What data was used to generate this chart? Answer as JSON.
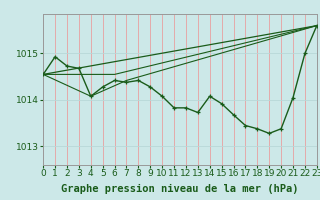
{
  "title": "Graphe pression niveau de la mer (hPa)",
  "background_color": "#cce8e8",
  "line_color": "#1a5c1a",
  "grid_color_v": "#e8a0a0",
  "grid_color_h": "#b8d8d8",
  "x_min": 0,
  "x_max": 23,
  "y_min": 1012.6,
  "y_max": 1015.85,
  "y_ticks": [
    1013,
    1014,
    1015
  ],
  "x_ticks": [
    0,
    1,
    2,
    3,
    4,
    5,
    6,
    7,
    8,
    9,
    10,
    11,
    12,
    13,
    14,
    15,
    16,
    17,
    18,
    19,
    20,
    21,
    22,
    23
  ],
  "main_series": [
    [
      0,
      1014.55
    ],
    [
      1,
      1014.93
    ],
    [
      2,
      1014.73
    ],
    [
      3,
      1014.68
    ],
    [
      4,
      1014.08
    ],
    [
      5,
      1014.28
    ],
    [
      6,
      1014.42
    ],
    [
      7,
      1014.38
    ],
    [
      8,
      1014.42
    ],
    [
      9,
      1014.28
    ],
    [
      10,
      1014.08
    ],
    [
      11,
      1013.83
    ],
    [
      12,
      1013.83
    ],
    [
      13,
      1013.73
    ],
    [
      14,
      1014.08
    ],
    [
      15,
      1013.92
    ],
    [
      16,
      1013.68
    ],
    [
      17,
      1013.45
    ],
    [
      18,
      1013.38
    ],
    [
      19,
      1013.28
    ],
    [
      20,
      1013.38
    ],
    [
      21,
      1014.05
    ],
    [
      22,
      1015.0
    ],
    [
      23,
      1015.6
    ]
  ],
  "trend_line": [
    [
      0,
      1014.55
    ],
    [
      23,
      1015.6
    ]
  ],
  "extra_line1": [
    [
      0,
      1014.55
    ],
    [
      4,
      1014.08
    ],
    [
      7,
      1014.42
    ],
    [
      23,
      1015.6
    ]
  ],
  "extra_line2": [
    [
      0,
      1014.55
    ],
    [
      6,
      1014.55
    ],
    [
      23,
      1015.6
    ]
  ],
  "marker_size": 3.0,
  "tick_fontsize": 6.5,
  "label_fontsize": 7.5
}
